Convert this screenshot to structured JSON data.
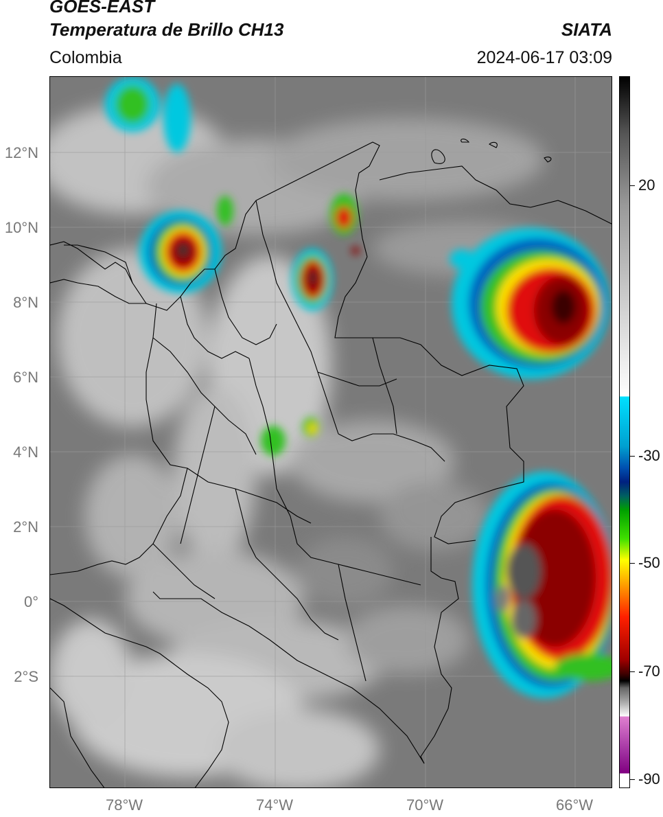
{
  "header": {
    "satellite": "GOES-EAST",
    "product": "Temperatura de Brillo CH13",
    "region": "Colombia",
    "source": "SIATA",
    "datetime": "2024-06-17 03:09"
  },
  "map": {
    "lat_ticks": [
      "12°N",
      "10°N",
      "8°N",
      "6°N",
      "4°N",
      "2°N",
      "0°",
      "2°S"
    ],
    "lon_ticks": [
      "78°W",
      "74°W",
      "70°W",
      "66°W"
    ],
    "lon_range": [
      -79.8,
      -64.8
    ],
    "lat_range": [
      -4.8,
      14.2
    ],
    "colors": {
      "land_gray": "#7a7a7a",
      "cloud_white": "#e6e6e6",
      "deep_red": "#8b0000",
      "red": "#e01010",
      "yellow": "#ffe000",
      "green": "#30c020",
      "blue": "#0060c0",
      "cyan": "#00c8e0"
    }
  },
  "colorbar": {
    "labels": [
      "20",
      "-30",
      "-50",
      "-70",
      "-90"
    ],
    "values": [
      20,
      -30,
      -50,
      -70,
      -90
    ],
    "range": [
      -92,
      35
    ]
  }
}
